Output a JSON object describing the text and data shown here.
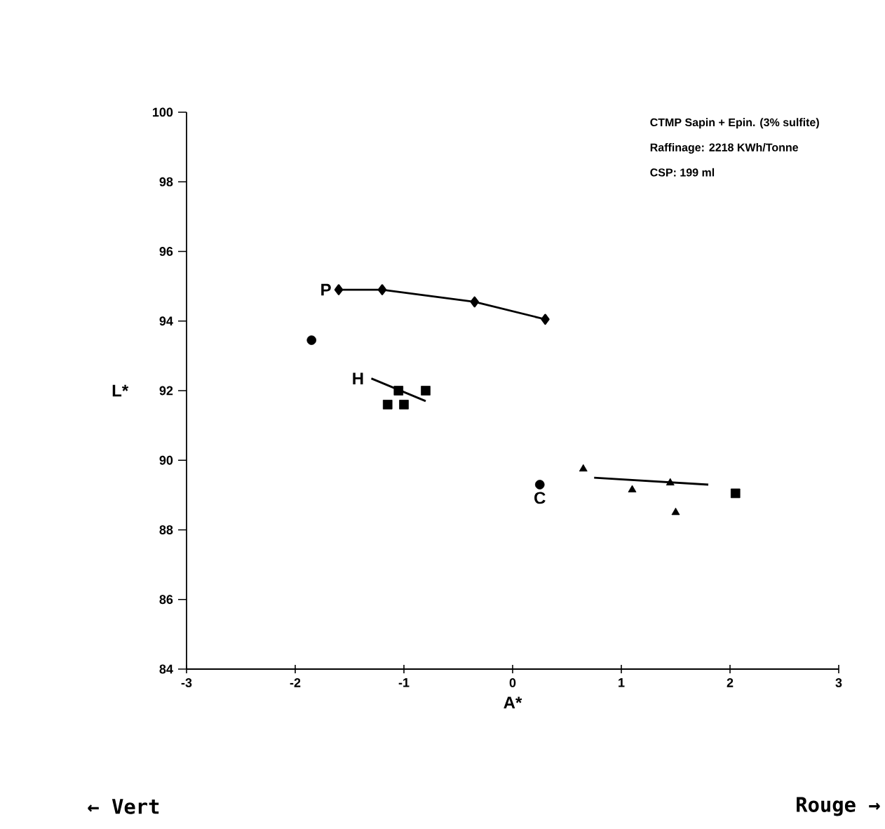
{
  "chart_data": {
    "type": "scatter",
    "xlabel": "A*",
    "ylabel": "L*",
    "xlim": [
      -3,
      3
    ],
    "ylim": [
      84,
      100
    ],
    "xticks": [
      -3,
      -2,
      -1,
      0,
      1,
      2,
      3
    ],
    "yticks": [
      84,
      86,
      88,
      90,
      92,
      94,
      96,
      98,
      100
    ],
    "grid": false,
    "legend": false,
    "series": [
      {
        "type": "line",
        "marker": "diamond",
        "name": "P",
        "color": "#000000",
        "x": [
          -1.6,
          -1.2,
          -0.35,
          0.3
        ],
        "values": [
          94.9,
          94.9,
          94.55,
          94.05
        ]
      },
      {
        "type": "scatter",
        "marker": "circle",
        "color": "#000000",
        "x": [
          -1.85
        ],
        "values": [
          93.45
        ]
      },
      {
        "type": "scatter",
        "marker": "circle",
        "name": "C",
        "color": "#000000",
        "x": [
          0.25
        ],
        "values": [
          89.3
        ]
      },
      {
        "type": "line",
        "marker": "none",
        "name": "H",
        "color": "#000000",
        "x": [
          -1.3,
          -0.8
        ],
        "values": [
          92.35,
          91.7
        ]
      },
      {
        "type": "scatter",
        "marker": "square",
        "color": "#000000",
        "x": [
          -1.05,
          -0.8,
          -1.15,
          -1.0,
          2.05
        ],
        "values": [
          92.0,
          92.0,
          91.6,
          91.6,
          89.05
        ]
      },
      {
        "type": "scatter",
        "marker": "triangle",
        "color": "#000000",
        "x": [
          0.65,
          1.1,
          1.45,
          1.5
        ],
        "values": [
          89.75,
          89.15,
          89.35,
          88.5
        ]
      },
      {
        "type": "line",
        "marker": "none",
        "color": "#000000",
        "x": [
          0.75,
          1.8
        ],
        "values": [
          89.5,
          89.3
        ]
      }
    ],
    "annotations": [
      "CTMP Sapin + Epin. (3% sulfite)",
      "Raffinage: 2218 KWh/Tonne",
      "CSP: 199 ml",
      "← Vert",
      "Rouge →"
    ]
  }
}
